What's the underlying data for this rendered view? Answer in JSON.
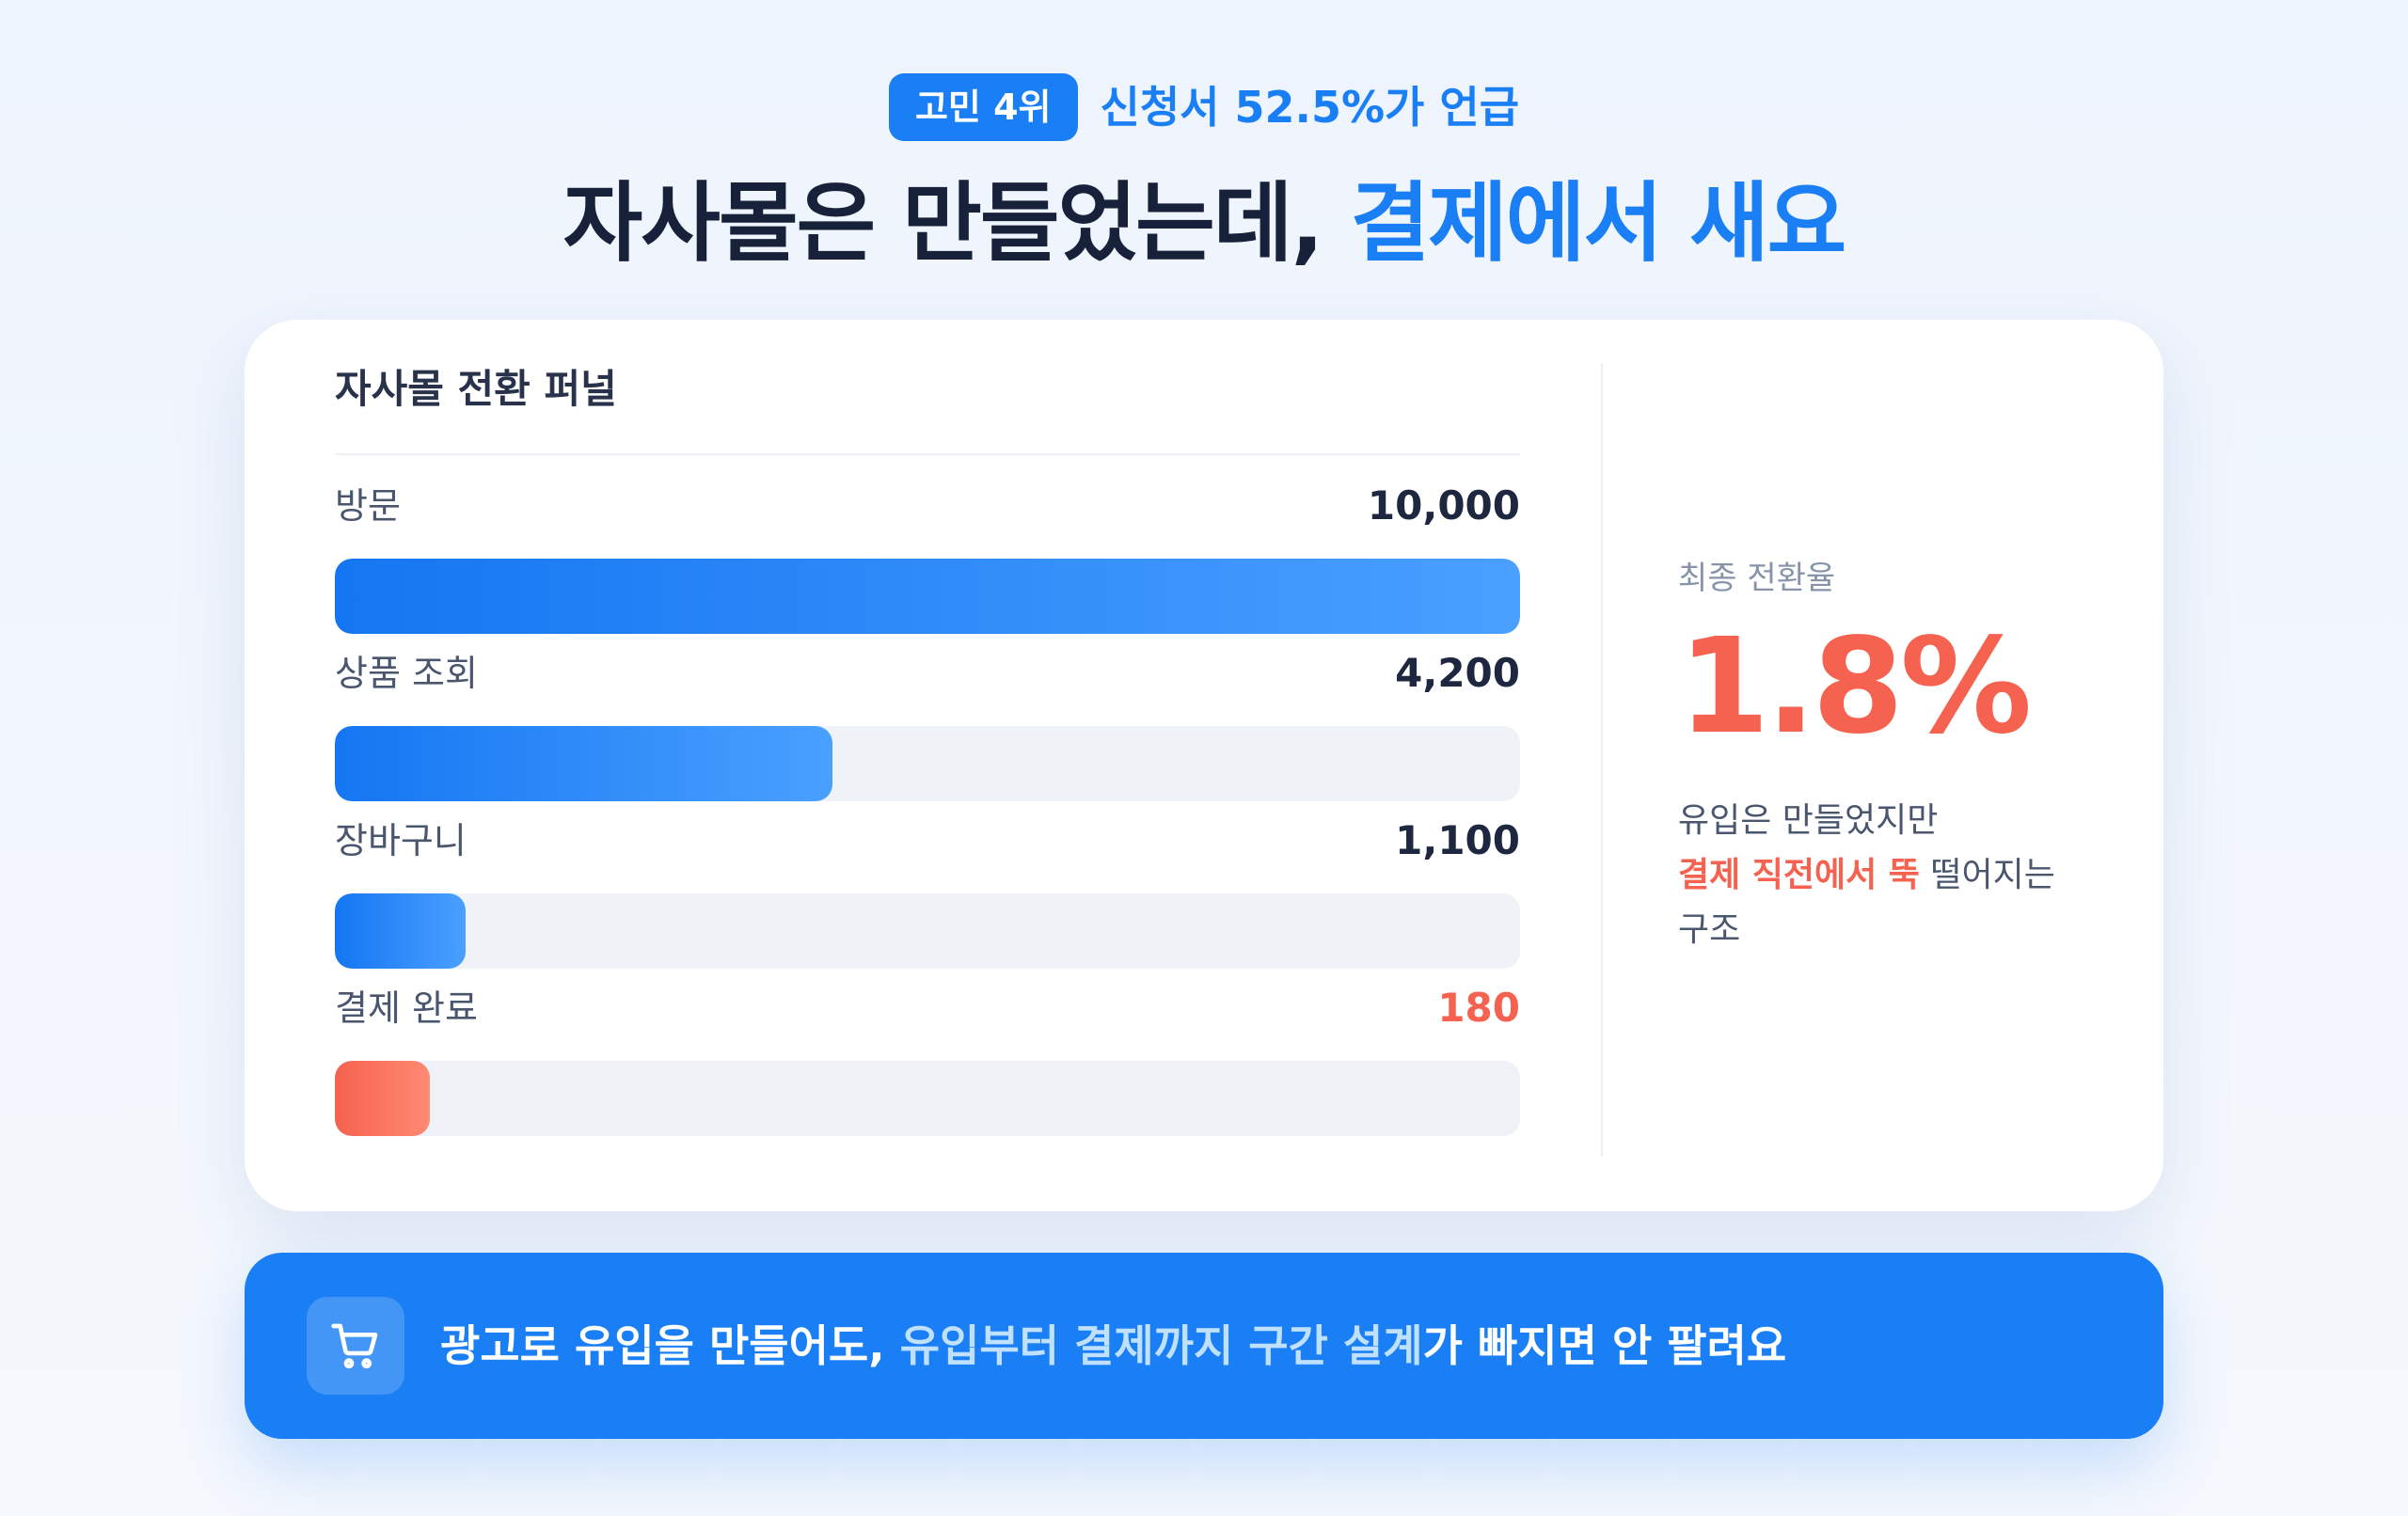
{
  "header": {
    "badge": "고민 4위",
    "badge_sub": "신청서 52.5%가 언급",
    "headline_main": "자사몰은 만들었는데, ",
    "headline_accent": "결제에서 새요"
  },
  "card": {
    "title": "자사몰 전환 퍼널"
  },
  "chart_data": {
    "type": "bar",
    "orientation": "horizontal",
    "title": "자사몰 전환 퍼널",
    "categories": [
      "방문",
      "상품 조회",
      "장바구니",
      "결제 완료"
    ],
    "values": [
      10000,
      4200,
      1100,
      180
    ],
    "value_labels": [
      "10,000",
      "4,200",
      "1,100",
      "180"
    ],
    "xlim": [
      0,
      10000
    ],
    "highlight_color": "#f5624f",
    "bar_color": "#1a7ef5"
  },
  "side": {
    "label": "최종 전환율",
    "value": "1.8%",
    "desc_line1": "유입은 만들었지만",
    "desc_highlight": "결제 직전에서 뚝",
    "desc_rest": " 떨어지는",
    "desc_line3": "구조"
  },
  "banner": {
    "icon": "cart-icon",
    "text_a": "광고로 유입을 만들어도, ",
    "text_b": "유입부터 결제까지 구간 설계",
    "text_c": "가 빠지면 안 팔려요"
  },
  "colors": {
    "accent": "#1a7ef5",
    "danger": "#f5624f"
  }
}
